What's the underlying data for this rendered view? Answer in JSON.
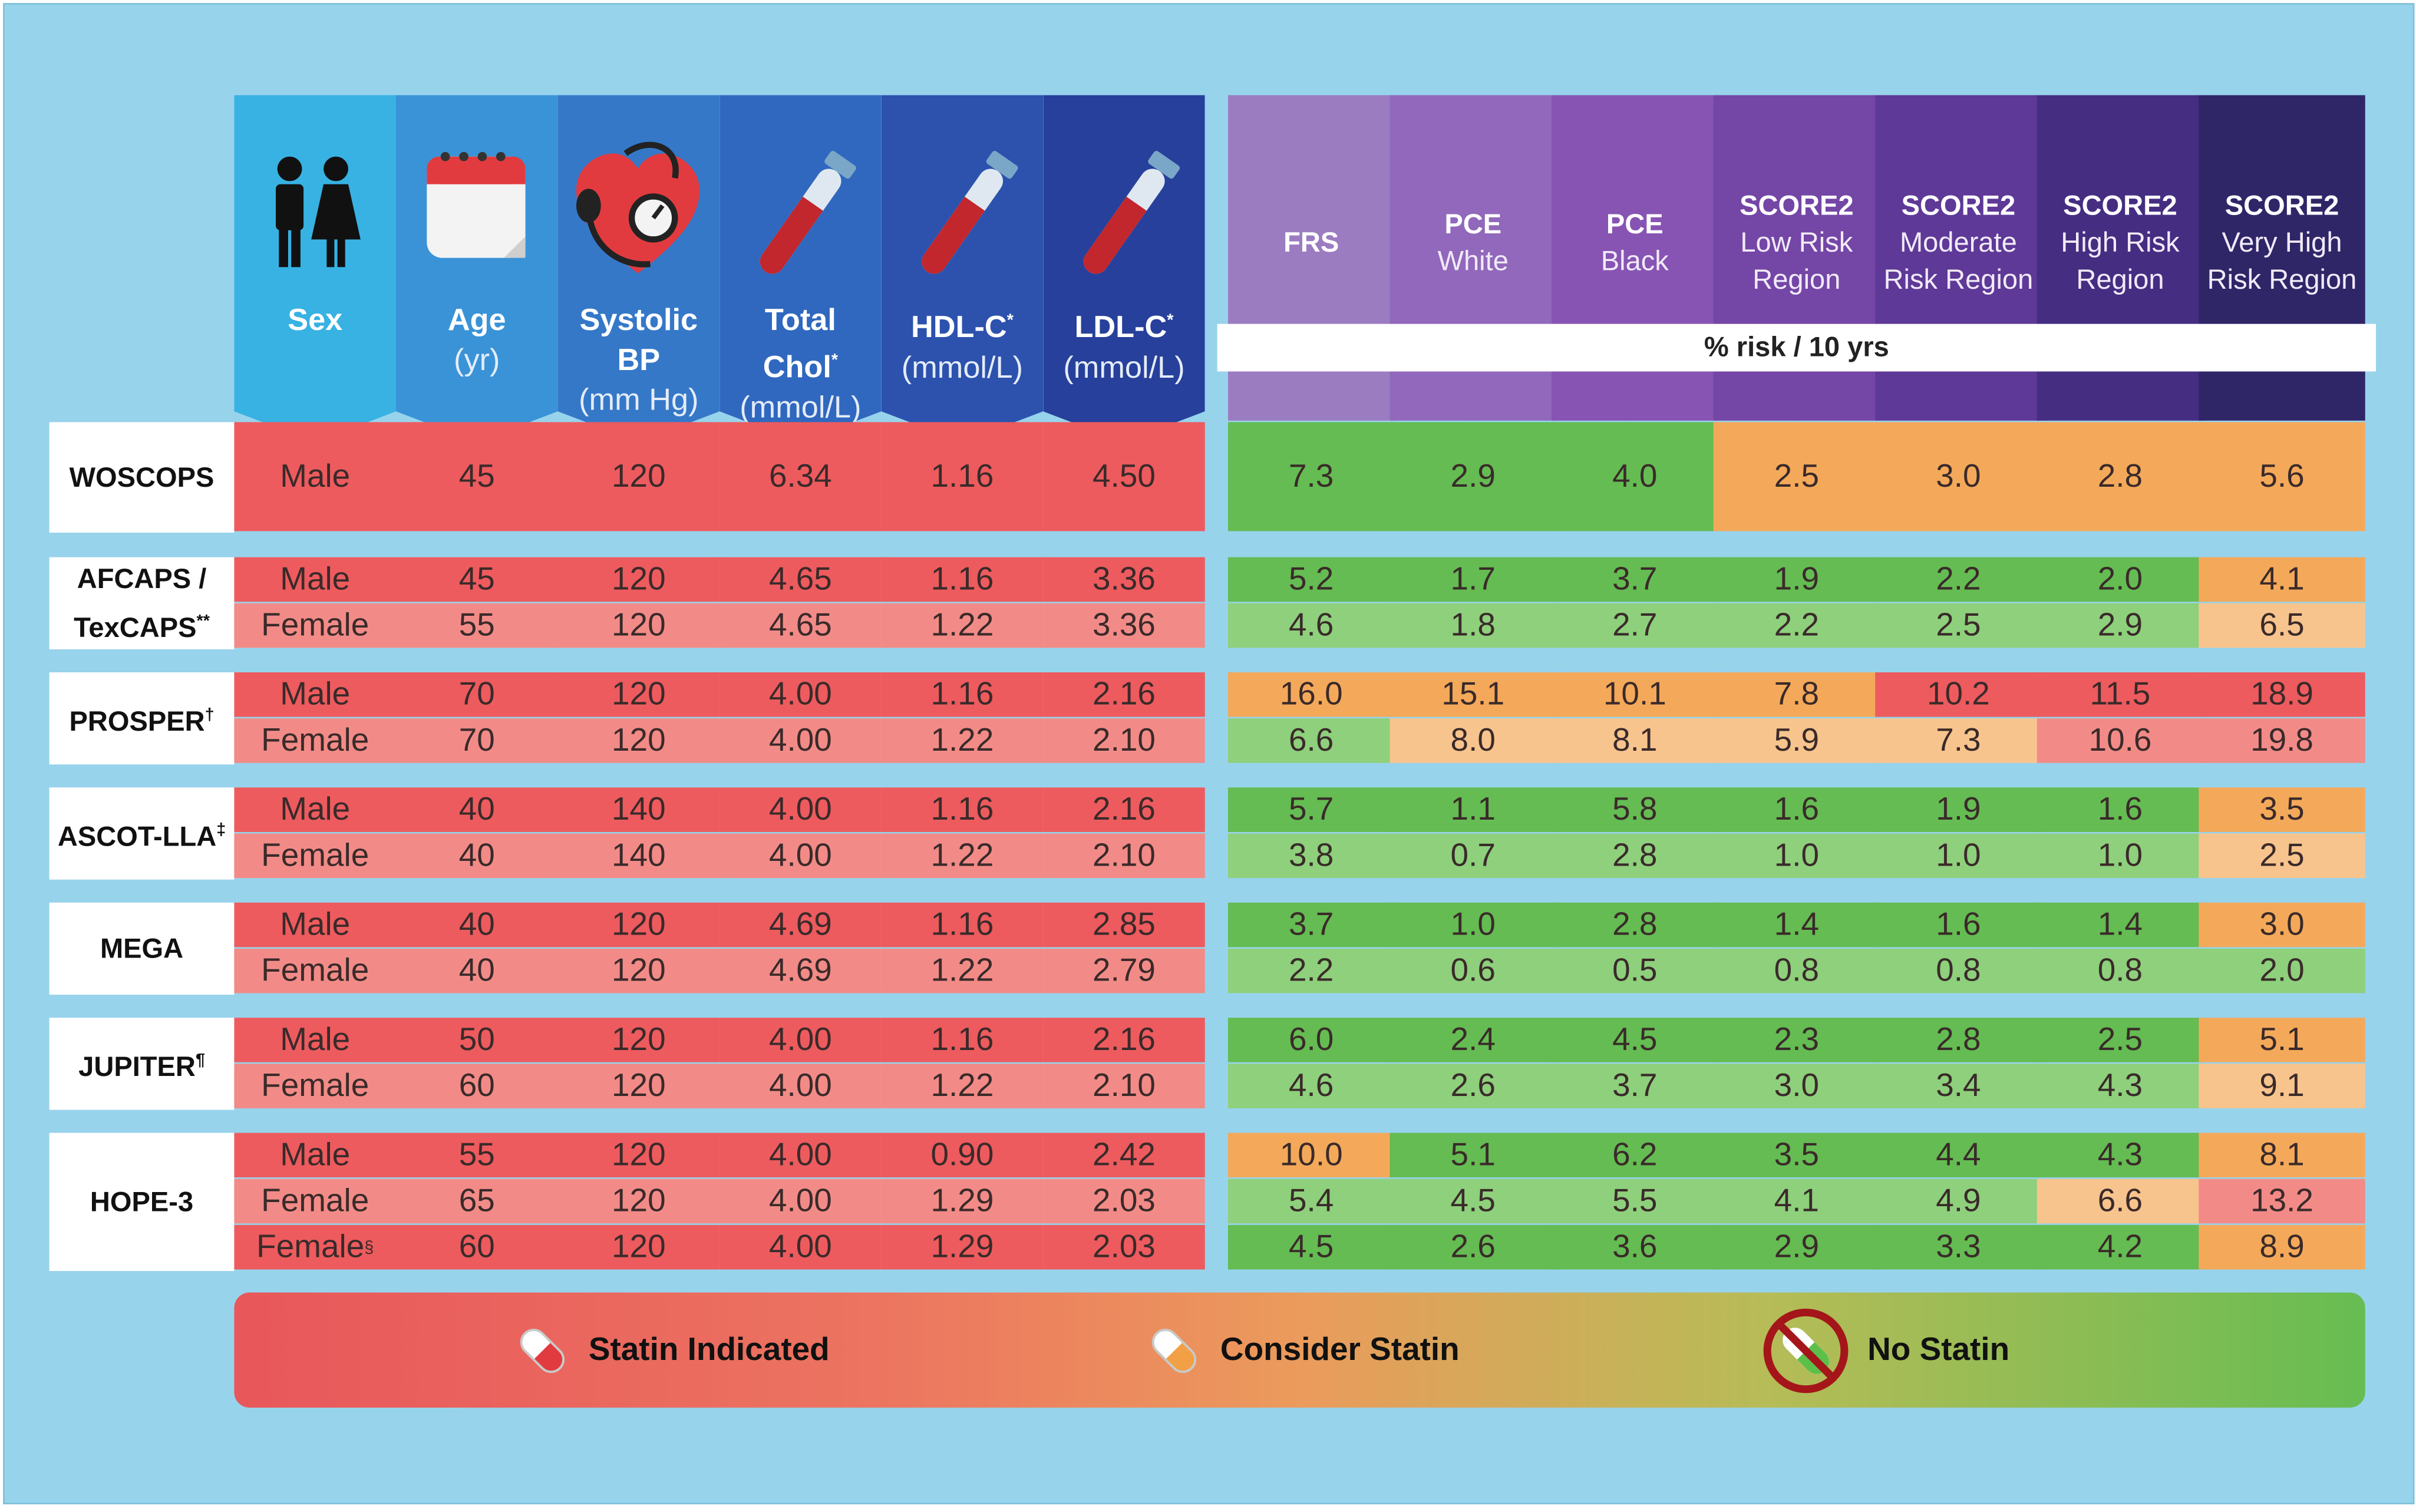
{
  "risk_axis_label": "% risk / 10 yrs",
  "input_headers": [
    {
      "title": "Sex",
      "sub": "",
      "icon": "people-icon"
    },
    {
      "title": "Age",
      "sub": "(yr)",
      "icon": "calendar-icon"
    },
    {
      "title": "Systolic BP",
      "sub": "(mm Hg)",
      "icon": "heart-blood-pressure-icon"
    },
    {
      "title": "Total Chol*",
      "sub": "(mmol/L)",
      "icon": "test-tube-icon"
    },
    {
      "title": "HDL-C*",
      "sub": "(mmol/L)",
      "icon": "test-tube-icon"
    },
    {
      "title": "LDL-C*",
      "sub": "(mmol/L)",
      "icon": "test-tube-icon"
    }
  ],
  "risk_headers": [
    {
      "line1": "FRS",
      "line2": "",
      "line3": ""
    },
    {
      "line1": "PCE",
      "line2": "White",
      "line3": ""
    },
    {
      "line1": "PCE",
      "line2": "Black",
      "line3": ""
    },
    {
      "line1": "SCORE2",
      "line2": "Low Risk",
      "line3": "Region"
    },
    {
      "line1": "SCORE2",
      "line2": "Moderate",
      "line3": "Risk Region"
    },
    {
      "line1": "SCORE2",
      "line2": "High Risk",
      "line3": "Region"
    },
    {
      "line1": "SCORE2",
      "line2": "Very High",
      "line3": "Risk Region"
    }
  ],
  "legend": {
    "statin_indicated": "Statin Indicated",
    "consider_statin": "Consider Statin",
    "no_statin": "No Statin"
  },
  "colors": {
    "statin_indicated": "#e8575b",
    "consider_statin": "#f4a958",
    "no_statin": "#66bd52",
    "background": "#98d3ec"
  },
  "chart_data": {
    "type": "table",
    "columns": [
      "Sex",
      "Age (yr)",
      "Systolic BP (mm Hg)",
      "Total Chol* (mmol/L)",
      "HDL-C* (mmol/L)",
      "LDL-C* (mmol/L)",
      "FRS",
      "PCE White",
      "PCE Black",
      "SCORE2 Low Risk Region",
      "SCORE2 Moderate Risk Region",
      "SCORE2 High Risk Region",
      "SCORE2 Very High Risk Region"
    ],
    "studies": [
      {
        "name": "WOSCOPS",
        "sup": "",
        "rows": [
          {
            "sex": "Male",
            "sex_sup": "",
            "inputs": [
              "45",
              "120",
              "6.34",
              "1.16",
              "4.50"
            ],
            "risks": [
              "7.3",
              "2.9",
              "4.0",
              "2.5",
              "3.0",
              "2.8",
              "5.6"
            ],
            "categories": [
              "no",
              "no",
              "no",
              "consider",
              "consider",
              "consider",
              "consider"
            ]
          }
        ]
      },
      {
        "name": "AFCAPS /",
        "name2": "TexCAPS",
        "sup": "**",
        "rows": [
          {
            "sex": "Male",
            "sex_sup": "",
            "inputs": [
              "45",
              "120",
              "4.65",
              "1.16",
              "3.36"
            ],
            "risks": [
              "5.2",
              "1.7",
              "3.7",
              "1.9",
              "2.2",
              "2.0",
              "4.1"
            ],
            "categories": [
              "no",
              "no",
              "no",
              "no",
              "no",
              "no",
              "consider"
            ]
          },
          {
            "sex": "Female",
            "sex_sup": "",
            "inputs": [
              "55",
              "120",
              "4.65",
              "1.22",
              "3.36"
            ],
            "risks": [
              "4.6",
              "1.8",
              "2.7",
              "2.2",
              "2.5",
              "2.9",
              "6.5"
            ],
            "categories": [
              "no",
              "no",
              "no",
              "no",
              "no",
              "no",
              "consider"
            ]
          }
        ]
      },
      {
        "name": "PROSPER",
        "sup": "†",
        "rows": [
          {
            "sex": "Male",
            "sex_sup": "",
            "inputs": [
              "70",
              "120",
              "4.00",
              "1.16",
              "2.16"
            ],
            "risks": [
              "16.0",
              "15.1",
              "10.1",
              "7.8",
              "10.2",
              "11.5",
              "18.9"
            ],
            "categories": [
              "consider",
              "consider",
              "consider",
              "consider",
              "indicated",
              "indicated",
              "indicated"
            ]
          },
          {
            "sex": "Female",
            "sex_sup": "",
            "inputs": [
              "70",
              "120",
              "4.00",
              "1.22",
              "2.10"
            ],
            "risks": [
              "6.6",
              "8.0",
              "8.1",
              "5.9",
              "7.3",
              "10.6",
              "19.8"
            ],
            "categories": [
              "no",
              "consider",
              "consider",
              "consider",
              "consider",
              "indicated",
              "indicated"
            ]
          }
        ]
      },
      {
        "name": "ASCOT-LLA",
        "sup": "‡",
        "rows": [
          {
            "sex": "Male",
            "sex_sup": "",
            "inputs": [
              "40",
              "140",
              "4.00",
              "1.16",
              "2.16"
            ],
            "risks": [
              "5.7",
              "1.1",
              "5.8",
              "1.6",
              "1.9",
              "1.6",
              "3.5"
            ],
            "categories": [
              "no",
              "no",
              "no",
              "no",
              "no",
              "no",
              "consider"
            ]
          },
          {
            "sex": "Female",
            "sex_sup": "",
            "inputs": [
              "40",
              "140",
              "4.00",
              "1.22",
              "2.10"
            ],
            "risks": [
              "3.8",
              "0.7",
              "2.8",
              "1.0",
              "1.0",
              "1.0",
              "2.5"
            ],
            "categories": [
              "no",
              "no",
              "no",
              "no",
              "no",
              "no",
              "consider"
            ]
          }
        ]
      },
      {
        "name": "MEGA",
        "sup": "",
        "rows": [
          {
            "sex": "Male",
            "sex_sup": "",
            "inputs": [
              "40",
              "120",
              "4.69",
              "1.16",
              "2.85"
            ],
            "risks": [
              "3.7",
              "1.0",
              "2.8",
              "1.4",
              "1.6",
              "1.4",
              "3.0"
            ],
            "categories": [
              "no",
              "no",
              "no",
              "no",
              "no",
              "no",
              "consider"
            ]
          },
          {
            "sex": "Female",
            "sex_sup": "",
            "inputs": [
              "40",
              "120",
              "4.69",
              "1.22",
              "2.79"
            ],
            "risks": [
              "2.2",
              "0.6",
              "0.5",
              "0.8",
              "0.8",
              "0.8",
              "2.0"
            ],
            "categories": [
              "no",
              "no",
              "no",
              "no",
              "no",
              "no",
              "no"
            ]
          }
        ]
      },
      {
        "name": "JUPITER",
        "sup": "¶",
        "rows": [
          {
            "sex": "Male",
            "sex_sup": "",
            "inputs": [
              "50",
              "120",
              "4.00",
              "1.16",
              "2.16"
            ],
            "risks": [
              "6.0",
              "2.4",
              "4.5",
              "2.3",
              "2.8",
              "2.5",
              "5.1"
            ],
            "categories": [
              "no",
              "no",
              "no",
              "no",
              "no",
              "no",
              "consider"
            ]
          },
          {
            "sex": "Female",
            "sex_sup": "",
            "inputs": [
              "60",
              "120",
              "4.00",
              "1.22",
              "2.10"
            ],
            "risks": [
              "4.6",
              "2.6",
              "3.7",
              "3.0",
              "3.4",
              "4.3",
              "9.1"
            ],
            "categories": [
              "no",
              "no",
              "no",
              "no",
              "no",
              "no",
              "consider"
            ]
          }
        ]
      },
      {
        "name": "HOPE-3",
        "sup": "",
        "rows": [
          {
            "sex": "Male",
            "sex_sup": "",
            "inputs": [
              "55",
              "120",
              "4.00",
              "0.90",
              "2.42"
            ],
            "risks": [
              "10.0",
              "5.1",
              "6.2",
              "3.5",
              "4.4",
              "4.3",
              "8.1"
            ],
            "categories": [
              "consider",
              "no",
              "no",
              "no",
              "no",
              "no",
              "consider"
            ]
          },
          {
            "sex": "Female",
            "sex_sup": "",
            "inputs": [
              "65",
              "120",
              "4.00",
              "1.29",
              "2.03"
            ],
            "risks": [
              "5.4",
              "4.5",
              "5.5",
              "4.1",
              "4.9",
              "6.6",
              "13.2"
            ],
            "categories": [
              "no",
              "no",
              "no",
              "no",
              "no",
              "consider",
              "indicated"
            ]
          },
          {
            "sex": "Female",
            "sex_sup": "§",
            "inputs": [
              "60",
              "120",
              "4.00",
              "1.29",
              "2.03"
            ],
            "risks": [
              "4.5",
              "2.6",
              "3.6",
              "2.9",
              "3.3",
              "4.2",
              "8.9"
            ],
            "categories": [
              "no",
              "no",
              "no",
              "no",
              "no",
              "no",
              "consider"
            ]
          }
        ]
      }
    ]
  }
}
